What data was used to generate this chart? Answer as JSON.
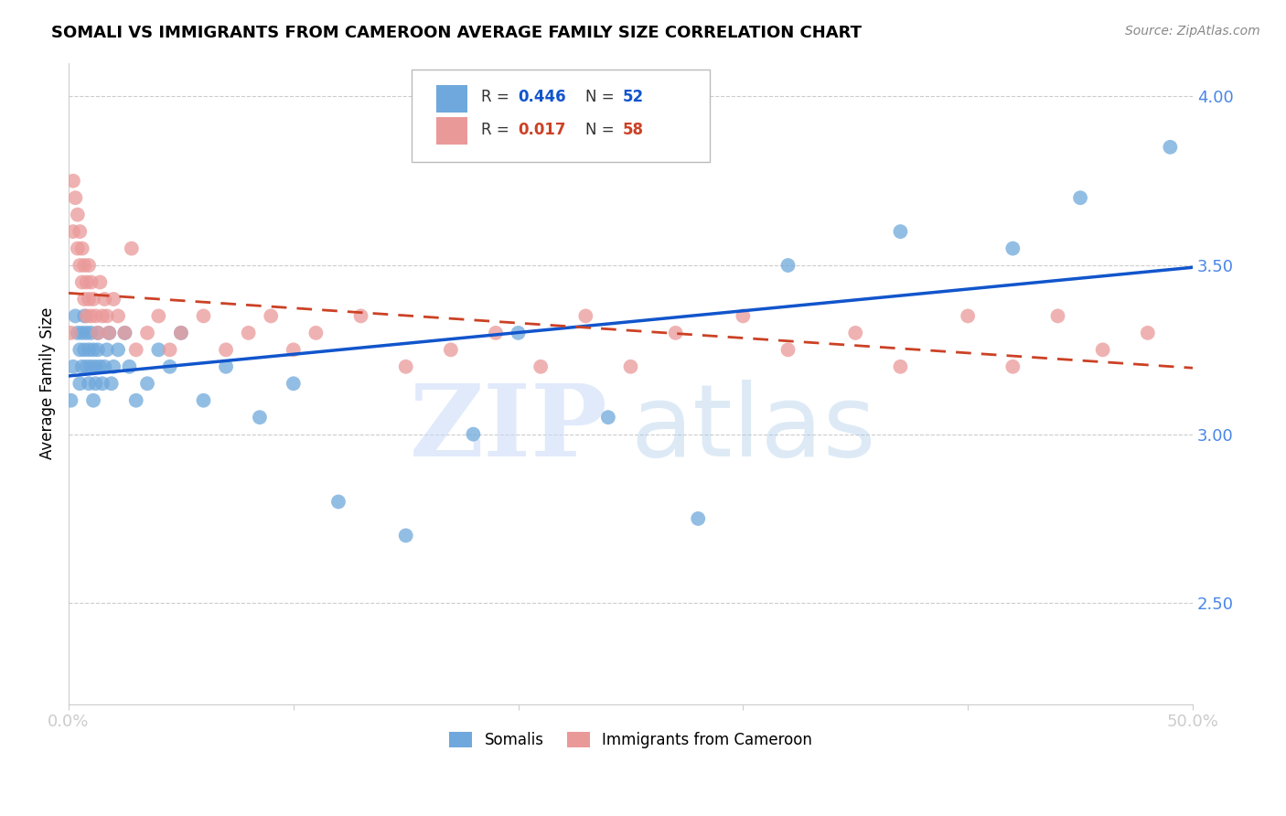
{
  "title": "SOMALI VS IMMIGRANTS FROM CAMEROON AVERAGE FAMILY SIZE CORRELATION CHART",
  "source": "Source: ZipAtlas.com",
  "ylabel": "Average Family Size",
  "xlim": [
    0.0,
    0.5
  ],
  "ylim": [
    2.2,
    4.1
  ],
  "yticks": [
    2.5,
    3.0,
    3.5,
    4.0
  ],
  "xticks": [
    0.0,
    0.1,
    0.2,
    0.3,
    0.4,
    0.5
  ],
  "xticklabels": [
    "0.0%",
    "",
    "",
    "",
    "",
    "50.0%"
  ],
  "yticklabels_right": [
    "2.50",
    "3.00",
    "3.50",
    "4.00"
  ],
  "blue_color": "#6fa8dc",
  "pink_color": "#ea9999",
  "blue_line_color": "#1155cc",
  "pink_line_color": "#cc4125",
  "axis_color": "#cccccc",
  "tick_label_color": "#4a86e8",
  "grid_color": "#cccccc",
  "somali_x": [
    0.001,
    0.002,
    0.003,
    0.004,
    0.005,
    0.005,
    0.006,
    0.006,
    0.007,
    0.007,
    0.008,
    0.008,
    0.009,
    0.009,
    0.01,
    0.01,
    0.011,
    0.011,
    0.012,
    0.012,
    0.013,
    0.013,
    0.014,
    0.015,
    0.016,
    0.017,
    0.018,
    0.019,
    0.02,
    0.022,
    0.025,
    0.027,
    0.03,
    0.035,
    0.04,
    0.045,
    0.05,
    0.06,
    0.07,
    0.085,
    0.1,
    0.12,
    0.15,
    0.18,
    0.2,
    0.24,
    0.28,
    0.32,
    0.37,
    0.42,
    0.45,
    0.49
  ],
  "somali_y": [
    3.1,
    3.2,
    3.35,
    3.3,
    3.15,
    3.25,
    3.3,
    3.2,
    3.35,
    3.25,
    3.2,
    3.3,
    3.15,
    3.25,
    3.3,
    3.2,
    3.25,
    3.1,
    3.2,
    3.15,
    3.3,
    3.25,
    3.2,
    3.15,
    3.2,
    3.25,
    3.3,
    3.15,
    3.2,
    3.25,
    3.3,
    3.2,
    3.1,
    3.15,
    3.25,
    3.2,
    3.3,
    3.1,
    3.2,
    3.05,
    3.15,
    2.8,
    2.7,
    3.0,
    3.3,
    3.05,
    2.75,
    3.5,
    3.6,
    3.55,
    3.7,
    3.85
  ],
  "cameroon_x": [
    0.001,
    0.002,
    0.002,
    0.003,
    0.004,
    0.004,
    0.005,
    0.005,
    0.006,
    0.006,
    0.007,
    0.007,
    0.008,
    0.008,
    0.009,
    0.009,
    0.01,
    0.01,
    0.011,
    0.012,
    0.013,
    0.014,
    0.015,
    0.016,
    0.017,
    0.018,
    0.02,
    0.022,
    0.025,
    0.028,
    0.03,
    0.035,
    0.04,
    0.045,
    0.05,
    0.06,
    0.07,
    0.08,
    0.09,
    0.1,
    0.11,
    0.13,
    0.15,
    0.17,
    0.19,
    0.21,
    0.23,
    0.25,
    0.27,
    0.3,
    0.32,
    0.35,
    0.37,
    0.4,
    0.42,
    0.44,
    0.46,
    0.48
  ],
  "cameroon_y": [
    3.3,
    3.6,
    3.75,
    3.7,
    3.55,
    3.65,
    3.5,
    3.6,
    3.45,
    3.55,
    3.4,
    3.5,
    3.35,
    3.45,
    3.4,
    3.5,
    3.35,
    3.45,
    3.4,
    3.35,
    3.3,
    3.45,
    3.35,
    3.4,
    3.35,
    3.3,
    3.4,
    3.35,
    3.3,
    3.55,
    3.25,
    3.3,
    3.35,
    3.25,
    3.3,
    3.35,
    3.25,
    3.3,
    3.35,
    3.25,
    3.3,
    3.35,
    3.2,
    3.25,
    3.3,
    3.2,
    3.35,
    3.2,
    3.3,
    3.35,
    3.25,
    3.3,
    3.2,
    3.35,
    3.2,
    3.35,
    3.25,
    3.3
  ]
}
